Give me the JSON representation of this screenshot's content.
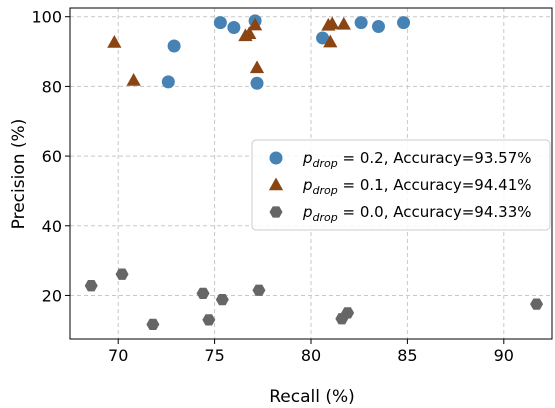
{
  "chart_data": {
    "type": "scatter",
    "xlabel": "Recall (%)",
    "ylabel": "Precision (%)",
    "xlim": [
      67.5,
      92.5
    ],
    "ylim": [
      7.5,
      102.5
    ],
    "xticks": [
      70,
      75,
      80,
      85,
      90
    ],
    "yticks": [
      20,
      40,
      60,
      80,
      100
    ],
    "grid": true,
    "legend_position": "right",
    "series": [
      {
        "name": "p_drop = 0.2, Accuracy=93.57%",
        "legend_var": "p",
        "legend_sub": "drop",
        "legend_rest": " = 0.2, Accuracy=93.57%",
        "marker": "circle",
        "color": "#4682b4",
        "points": [
          {
            "x": 72.6,
            "y": 81.3
          },
          {
            "x": 72.9,
            "y": 91.6
          },
          {
            "x": 75.3,
            "y": 98.3
          },
          {
            "x": 76.0,
            "y": 96.9
          },
          {
            "x": 77.1,
            "y": 98.8
          },
          {
            "x": 77.2,
            "y": 80.9
          },
          {
            "x": 80.6,
            "y": 93.9
          },
          {
            "x": 82.6,
            "y": 98.3
          },
          {
            "x": 83.5,
            "y": 97.2
          },
          {
            "x": 84.8,
            "y": 98.3
          }
        ]
      },
      {
        "name": "p_drop = 0.1, Accuracy=94.41%",
        "legend_var": "p",
        "legend_sub": "drop",
        "legend_rest": " = 0.1, Accuracy=94.41%",
        "marker": "triangle",
        "color": "#8b4513",
        "points": [
          {
            "x": 69.8,
            "y": 92.6
          },
          {
            "x": 70.8,
            "y": 81.7
          },
          {
            "x": 76.6,
            "y": 94.5
          },
          {
            "x": 76.8,
            "y": 95.1
          },
          {
            "x": 77.1,
            "y": 97.6
          },
          {
            "x": 77.2,
            "y": 85.3
          },
          {
            "x": 80.9,
            "y": 97.5
          },
          {
            "x": 81.1,
            "y": 97.9
          },
          {
            "x": 81.0,
            "y": 92.7
          },
          {
            "x": 81.7,
            "y": 97.8
          }
        ]
      },
      {
        "name": "p_drop = 0.0, Accuracy=94.33%",
        "legend_var": "p",
        "legend_sub": "drop",
        "legend_rest": " = 0.0, Accuracy=94.33%",
        "marker": "hexagon",
        "color": "#666666",
        "points": [
          {
            "x": 68.6,
            "y": 22.8
          },
          {
            "x": 70.2,
            "y": 26.1
          },
          {
            "x": 71.8,
            "y": 11.7
          },
          {
            "x": 74.4,
            "y": 20.6
          },
          {
            "x": 74.7,
            "y": 13.0
          },
          {
            "x": 75.4,
            "y": 18.8
          },
          {
            "x": 77.3,
            "y": 21.5
          },
          {
            "x": 81.6,
            "y": 13.3
          },
          {
            "x": 81.9,
            "y": 15.0
          },
          {
            "x": 91.7,
            "y": 17.5
          }
        ]
      }
    ]
  }
}
